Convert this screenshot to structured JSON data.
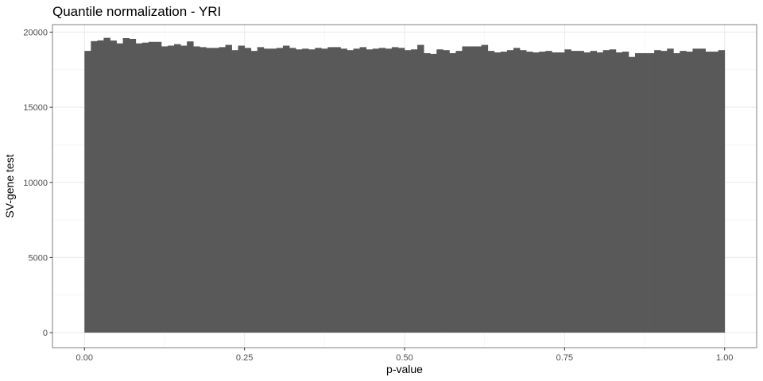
{
  "chart_data": {
    "type": "bar",
    "subtype": "histogram",
    "title": "Quantile normalization - YRI",
    "xlabel": "p-value",
    "ylabel": "SV-gene test",
    "xlim": [
      -0.05,
      1.05
    ],
    "ylim": [
      -1000,
      20500
    ],
    "x_ticks": [
      0.0,
      0.25,
      0.5,
      0.75,
      1.0
    ],
    "x_tick_labels": [
      "0.00",
      "0.25",
      "0.50",
      "0.75",
      "1.00"
    ],
    "y_ticks": [
      0,
      5000,
      10000,
      15000,
      20000
    ],
    "y_tick_labels": [
      "0",
      "5000",
      "10000",
      "15000",
      "20000"
    ],
    "grid": true,
    "bin_range": [
      0,
      1
    ],
    "bar_color": "#595959",
    "values": [
      18750,
      19400,
      19450,
      19620,
      19440,
      19250,
      19600,
      19550,
      19250,
      19300,
      19350,
      19350,
      19050,
      19100,
      19200,
      19100,
      19380,
      19050,
      19000,
      18950,
      18950,
      19000,
      19150,
      18800,
      19100,
      18950,
      18750,
      19000,
      18900,
      18900,
      18950,
      19100,
      18950,
      18850,
      18900,
      18850,
      18950,
      18900,
      19000,
      19000,
      18900,
      18800,
      18900,
      19000,
      18850,
      18900,
      18950,
      18900,
      19000,
      18950,
      18800,
      18850,
      19150,
      18600,
      18550,
      18850,
      18800,
      18600,
      18750,
      19050,
      19050,
      19050,
      19150,
      18750,
      18650,
      18700,
      18800,
      18950,
      18800,
      18700,
      18650,
      18700,
      18750,
      18650,
      18650,
      18850,
      18750,
      18750,
      18650,
      18750,
      18650,
      18800,
      18850,
      18650,
      18700,
      18350,
      18600,
      18600,
      18600,
      18800,
      18750,
      18900,
      18600,
      18750,
      18700,
      18900,
      18900,
      18700,
      18700,
      18800
    ]
  }
}
